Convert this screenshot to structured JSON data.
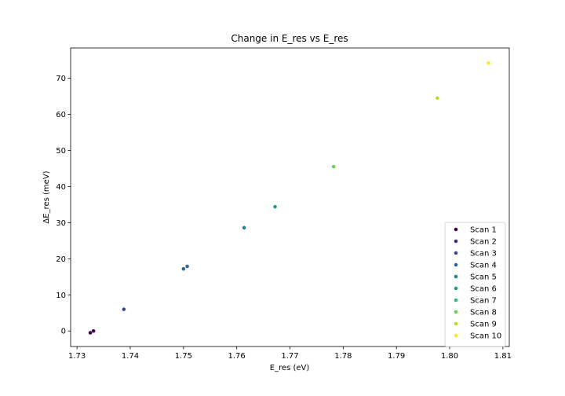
{
  "chart_data": {
    "type": "scatter",
    "title": "Change in E_res vs E_res",
    "xlabel": "E_res (eV)",
    "ylabel": "ΔE_res (meV)",
    "xlim": [
      1.7288,
      1.8112
    ],
    "ylim": [
      -4.3,
      78.4
    ],
    "xticks": [
      "1.73",
      "1.74",
      "1.75",
      "1.76",
      "1.77",
      "1.78",
      "1.79",
      "1.80",
      "1.81"
    ],
    "xtick_values": [
      1.73,
      1.74,
      1.75,
      1.76,
      1.77,
      1.78,
      1.79,
      1.8,
      1.81
    ],
    "yticks": [
      "0",
      "10",
      "20",
      "30",
      "40",
      "50",
      "60",
      "70"
    ],
    "ytick_values": [
      0,
      10,
      20,
      30,
      40,
      50,
      60,
      70
    ],
    "grid": false,
    "legend_position": "lower-right",
    "series": [
      {
        "name": "Scan 1",
        "color": "#440154",
        "points": [
          [
            1.7325,
            -0.5
          ],
          [
            1.7331,
            0.0
          ]
        ]
      },
      {
        "name": "Scan 2",
        "color": "#482878",
        "points": []
      },
      {
        "name": "Scan 3",
        "color": "#3e4989",
        "points": [
          [
            1.7388,
            6.0
          ]
        ]
      },
      {
        "name": "Scan 4",
        "color": "#31688e",
        "points": [
          [
            1.75,
            17.2
          ],
          [
            1.7507,
            17.9
          ]
        ]
      },
      {
        "name": "Scan 5",
        "color": "#26828e",
        "points": [
          [
            1.7614,
            28.6
          ]
        ]
      },
      {
        "name": "Scan 6",
        "color": "#1f9e89",
        "points": [
          [
            1.7672,
            34.4
          ]
        ]
      },
      {
        "name": "Scan 7",
        "color": "#35b779",
        "points": []
      },
      {
        "name": "Scan 8",
        "color": "#6ece58",
        "points": [
          [
            1.7782,
            45.5
          ]
        ]
      },
      {
        "name": "Scan 9",
        "color": "#b5de2b",
        "points": [
          [
            1.7977,
            64.5
          ]
        ]
      },
      {
        "name": "Scan 10",
        "color": "#fde725",
        "points": [
          [
            1.8073,
            74.2
          ]
        ]
      }
    ]
  }
}
